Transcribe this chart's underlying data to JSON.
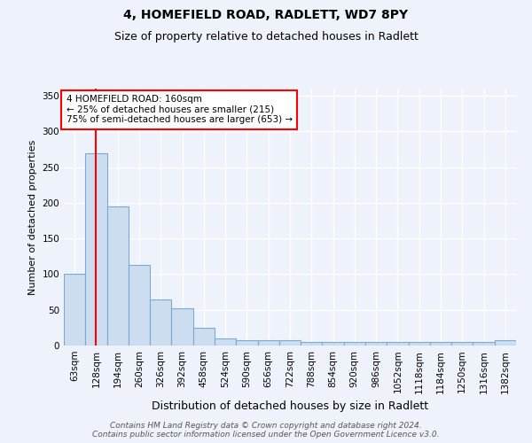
{
  "title1": "4, HOMEFIELD ROAD, RADLETT, WD7 8PY",
  "title2": "Size of property relative to detached houses in Radlett",
  "xlabel": "Distribution of detached houses by size in Radlett",
  "ylabel": "Number of detached properties",
  "footer1": "Contains HM Land Registry data © Crown copyright and database right 2024.",
  "footer2": "Contains public sector information licensed under the Open Government Licence v3.0.",
  "categories": [
    "63sqm",
    "128sqm",
    "194sqm",
    "260sqm",
    "326sqm",
    "392sqm",
    "458sqm",
    "524sqm",
    "590sqm",
    "656sqm",
    "722sqm",
    "788sqm",
    "854sqm",
    "920sqm",
    "986sqm",
    "1052sqm",
    "1118sqm",
    "1184sqm",
    "1250sqm",
    "1316sqm",
    "1382sqm"
  ],
  "values": [
    100,
    270,
    195,
    113,
    65,
    52,
    25,
    10,
    7,
    7,
    7,
    5,
    5,
    5,
    5,
    5,
    5,
    5,
    5,
    5,
    7
  ],
  "bar_color": "#ccddf0",
  "bar_edge_color": "#7aaad0",
  "bar_edge_width": 0.8,
  "red_line_x": 1.0,
  "ylim": [
    0,
    360
  ],
  "yticks": [
    0,
    50,
    100,
    150,
    200,
    250,
    300,
    350
  ],
  "annotation_text": "4 HOMEFIELD ROAD: 160sqm\n← 25% of detached houses are smaller (215)\n75% of semi-detached houses are larger (653) →",
  "background_color": "#eef2fb",
  "plot_bg_color": "#eef2fb",
  "grid_color": "white",
  "title1_fontsize": 10,
  "title2_fontsize": 9,
  "xlabel_fontsize": 9,
  "ylabel_fontsize": 8,
  "tick_fontsize": 7.5,
  "footer_fontsize": 6.5
}
